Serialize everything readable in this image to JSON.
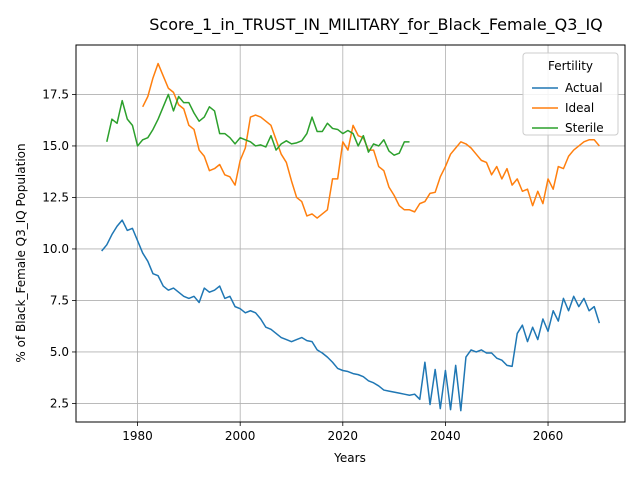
{
  "chart_data": {
    "type": "line",
    "title": "Score_1_in_TRUST_IN_MILITARY_for_Black_Female_Q3_IQ",
    "xlabel": "Years",
    "ylabel": "% of Black_Female Q3_IQ Population",
    "xlim": [
      1968,
      2075
    ],
    "ylim": [
      1.6,
      19.9
    ],
    "xticks": [
      1980,
      2000,
      2020,
      2040,
      2060
    ],
    "yticks": [
      2.5,
      5.0,
      7.5,
      10.0,
      12.5,
      15.0,
      17.5
    ],
    "xtick_labels": [
      "1980",
      "2000",
      "2020",
      "2040",
      "2060"
    ],
    "ytick_labels": [
      "2.5",
      "5.0",
      "7.5",
      "10.0",
      "12.5",
      "15.0",
      "17.5"
    ],
    "grid": true,
    "legend": {
      "title": "Fertility",
      "placement": "top-right"
    },
    "series": [
      {
        "name": "Actual",
        "color": "#1f77b4",
        "x": [
          1973,
          1974,
          1975,
          1976,
          1977,
          1978,
          1979,
          1980,
          1981,
          1982,
          1983,
          1984,
          1985,
          1986,
          1987,
          1988,
          1989,
          1990,
          1991,
          1992,
          1993,
          1994,
          1995,
          1996,
          1997,
          1998,
          1999,
          2000,
          2001,
          2002,
          2003,
          2004,
          2005,
          2006,
          2007,
          2008,
          2009,
          2010,
          2011,
          2012,
          2013,
          2014,
          2015,
          2016,
          2017,
          2018,
          2019,
          2020,
          2021,
          2022,
          2023,
          2024,
          2025,
          2026,
          2027,
          2028,
          2029,
          2030,
          2031,
          2032,
          2033,
          2034,
          2035,
          2036,
          2037,
          2038,
          2039,
          2040,
          2041,
          2042,
          2043,
          2044,
          2045,
          2046,
          2047,
          2048,
          2049,
          2050,
          2051,
          2052,
          2053,
          2054,
          2055,
          2056,
          2057,
          2058,
          2059,
          2060,
          2061,
          2062,
          2063,
          2064,
          2065,
          2066,
          2067,
          2068,
          2069,
          2070
        ],
        "values": [
          9.9,
          10.2,
          10.7,
          11.1,
          11.4,
          10.9,
          11.0,
          10.4,
          9.8,
          9.4,
          8.8,
          8.7,
          8.2,
          8.0,
          8.1,
          7.9,
          7.7,
          7.6,
          7.7,
          7.4,
          8.1,
          7.9,
          8.0,
          8.2,
          7.6,
          7.7,
          7.2,
          7.1,
          6.9,
          7.0,
          6.9,
          6.6,
          6.2,
          6.1,
          5.9,
          5.7,
          5.6,
          5.5,
          5.6,
          5.7,
          5.55,
          5.5,
          5.1,
          4.95,
          4.75,
          4.5,
          4.2,
          4.1,
          4.05,
          3.95,
          3.9,
          3.8,
          3.6,
          3.5,
          3.35,
          3.15,
          3.1,
          3.05,
          3.0,
          2.95,
          2.9,
          2.95,
          2.7,
          4.5,
          2.45,
          4.15,
          2.25,
          4.1,
          2.2,
          4.35,
          2.15,
          4.75,
          5.1,
          5.0,
          5.1,
          4.95,
          4.95,
          4.7,
          4.6,
          4.35,
          4.3,
          5.9,
          6.3,
          5.5,
          6.2,
          5.6,
          6.6,
          6.0,
          7.0,
          6.5,
          7.6,
          7.0,
          7.7,
          7.2,
          7.6,
          7.0,
          7.2,
          6.4
        ]
      },
      {
        "name": "Ideal",
        "color": "#ff7f0e",
        "x": [
          1981,
          1982,
          1983,
          1984,
          1985,
          1986,
          1987,
          1988,
          1989,
          1990,
          1991,
          1992,
          1993,
          1994,
          1995,
          1996,
          1997,
          1998,
          1999,
          2000,
          2001,
          2002,
          2003,
          2004,
          2005,
          2006,
          2007,
          2008,
          2009,
          2010,
          2011,
          2012,
          2013,
          2014,
          2015,
          2016,
          2017,
          2018,
          2019,
          2020,
          2021,
          2022,
          2023,
          2024,
          2025,
          2026,
          2027,
          2028,
          2029,
          2030,
          2031,
          2032,
          2033,
          2034,
          2035,
          2036,
          2037,
          2038,
          2039,
          2040,
          2041,
          2042,
          2043,
          2044,
          2045,
          2046,
          2047,
          2048,
          2049,
          2050,
          2051,
          2052,
          2053,
          2054,
          2055,
          2056,
          2057,
          2058,
          2059,
          2060,
          2061,
          2062,
          2063,
          2064,
          2065,
          2066,
          2067,
          2068,
          2069,
          2070
        ],
        "values": [
          16.9,
          17.4,
          18.3,
          19.0,
          18.4,
          17.8,
          17.6,
          17.0,
          16.8,
          16.0,
          15.8,
          14.8,
          14.5,
          13.8,
          13.9,
          14.1,
          13.6,
          13.5,
          13.1,
          14.3,
          14.9,
          16.4,
          16.5,
          16.4,
          16.2,
          16.0,
          15.3,
          14.6,
          14.2,
          13.3,
          12.5,
          12.3,
          11.6,
          11.7,
          11.5,
          11.7,
          11.9,
          13.4,
          13.4,
          15.2,
          14.8,
          16.0,
          15.5,
          15.4,
          14.8,
          14.8,
          14.0,
          13.8,
          13.0,
          12.6,
          12.1,
          11.9,
          11.9,
          11.8,
          12.2,
          12.3,
          12.7,
          12.75,
          13.5,
          14.0,
          14.6,
          14.9,
          15.2,
          15.1,
          14.9,
          14.6,
          14.3,
          14.2,
          13.6,
          14.0,
          13.4,
          13.9,
          13.1,
          13.4,
          12.8,
          12.9,
          12.1,
          12.8,
          12.2,
          13.4,
          12.9,
          14.0,
          13.9,
          14.5,
          14.8,
          15.0,
          15.2,
          15.3,
          15.3,
          15.0
        ]
      },
      {
        "name": "Sterile",
        "color": "#2ca02c",
        "x": [
          1974,
          1975,
          1976,
          1977,
          1978,
          1979,
          1980,
          1981,
          1982,
          1983,
          1984,
          1985,
          1986,
          1987,
          1988,
          1989,
          1990,
          1991,
          1992,
          1993,
          1994,
          1995,
          1996,
          1997,
          1998,
          1999,
          2000,
          2001,
          2002,
          2003,
          2004,
          2005,
          2006,
          2007,
          2008,
          2009,
          2010,
          2011,
          2012,
          2013,
          2014,
          2015,
          2016,
          2017,
          2018,
          2019,
          2020,
          2021,
          2022,
          2023,
          2024,
          2025,
          2026,
          2027,
          2028,
          2029,
          2030,
          2031,
          2032,
          2033
        ],
        "values": [
          15.2,
          16.3,
          16.1,
          17.2,
          16.3,
          16.0,
          15.0,
          15.3,
          15.4,
          15.8,
          16.3,
          16.9,
          17.5,
          16.7,
          17.4,
          17.1,
          17.1,
          16.6,
          16.2,
          16.4,
          16.9,
          16.7,
          15.6,
          15.6,
          15.4,
          15.1,
          15.4,
          15.3,
          15.2,
          15.0,
          15.05,
          14.95,
          15.5,
          14.8,
          15.1,
          15.25,
          15.1,
          15.15,
          15.25,
          15.6,
          16.4,
          15.7,
          15.7,
          16.1,
          15.85,
          15.8,
          15.6,
          15.75,
          15.6,
          15.0,
          15.5,
          14.7,
          15.1,
          15.0,
          15.3,
          14.75,
          14.55,
          14.65,
          15.2,
          15.2
        ]
      }
    ]
  }
}
